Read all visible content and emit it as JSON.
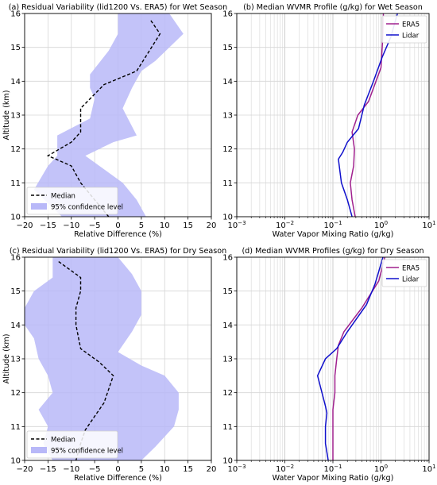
{
  "chart_data": [
    {
      "id": "a",
      "type": "line",
      "title": "(a) Residual Variability (lid1200 Vs. ERA5) for Wet Season",
      "xlabel": "Relative Difference (%)",
      "ylabel": "Altitude (km)",
      "xscale": "linear",
      "xlim": [
        -20,
        20
      ],
      "ylim": [
        10,
        16
      ],
      "xticks": [
        -20,
        -15,
        -10,
        -5,
        0,
        5,
        10,
        15,
        20
      ],
      "xtick_labels": [
        "−20",
        "−15",
        "−10",
        "−5",
        "0",
        "5",
        "10",
        "15",
        "20"
      ],
      "yticks": [
        10,
        11,
        12,
        13,
        14,
        15,
        16
      ],
      "ytick_labels": [
        "10",
        "11",
        "12",
        "13",
        "14",
        "15",
        "16"
      ],
      "grid": true,
      "legend": "lower-left",
      "legend_entries": [
        {
          "label": "Median",
          "style": "dashed",
          "color": "#000000"
        },
        {
          "label": "95% confidence level",
          "style": "patch",
          "color": "#b8b8f8"
        }
      ],
      "median": {
        "x": [
          -2,
          -5,
          -8,
          -10,
          -15,
          -10,
          -8,
          -8,
          -3,
          4,
          9,
          7
        ],
        "y": [
          10,
          10.5,
          11,
          11.5,
          11.8,
          12.2,
          12.5,
          13.2,
          13.9,
          14.3,
          15.4,
          15.8
        ]
      },
      "band_lower": {
        "x": [
          -12,
          -18,
          -15,
          -13,
          -13,
          -6,
          -5,
          -6,
          -6,
          -2,
          0,
          0
        ],
        "y": [
          10,
          10.8,
          11.5,
          11.8,
          12.4,
          12.9,
          13.5,
          13.8,
          14.2,
          14.9,
          15.4,
          16
        ]
      },
      "band_upper": {
        "x": [
          6,
          4,
          1,
          -7,
          -1,
          4,
          1,
          3,
          5,
          8,
          14,
          11
        ],
        "y": [
          10,
          10.5,
          11,
          11.8,
          12.2,
          12.4,
          13.2,
          13.8,
          14.3,
          14.6,
          15.4,
          16
        ]
      }
    },
    {
      "id": "b",
      "type": "line",
      "title": "(b) Median WVMR Profile (g/kg) for Wet Season",
      "xlabel": "Water Vapor Mixing Ratio (g/kg)",
      "ylabel": "",
      "xscale": "log",
      "xlim": [
        0.001,
        10
      ],
      "ylim": [
        10,
        16
      ],
      "xticks": [
        0.001,
        0.01,
        0.1,
        1,
        10
      ],
      "xtick_labels": [
        [
          "10",
          "−3"
        ],
        [
          "10",
          "−2"
        ],
        [
          "10",
          "−1"
        ],
        [
          "10",
          "0"
        ],
        [
          "10",
          "1"
        ]
      ],
      "yticks": [
        10,
        11,
        12,
        13,
        14,
        15,
        16
      ],
      "ytick_labels": [
        "10",
        "11",
        "12",
        "13",
        "14",
        "15",
        "16"
      ],
      "grid": true,
      "legend": "top-right",
      "series": [
        {
          "name": "ERA5",
          "color": "#a0208e",
          "x": [
            0.29,
            0.25,
            0.23,
            0.27,
            0.28,
            0.25,
            0.33,
            0.55,
            1.0,
            1.1,
            1.12
          ],
          "y": [
            10,
            10.5,
            11,
            11.5,
            12,
            12.5,
            13,
            13.4,
            14.4,
            15.4,
            16
          ]
        },
        {
          "name": "Lidar",
          "color": "#1010cc",
          "x": [
            0.25,
            0.2,
            0.15,
            0.13,
            0.16,
            0.2,
            0.34,
            0.45,
            0.7,
            1.05,
            1.6,
            2.2
          ],
          "y": [
            10,
            10.5,
            11,
            11.7,
            11.9,
            12.2,
            12.6,
            13.3,
            14,
            14.7,
            15.3,
            16
          ]
        }
      ]
    },
    {
      "id": "c",
      "type": "line",
      "title": "(c) Residual Variability (lid1200 Vs. ERA5) for Dry Season",
      "xlabel": "Relative Difference (%)",
      "ylabel": "Altitude (km)",
      "xscale": "linear",
      "xlim": [
        -20,
        20
      ],
      "ylim": [
        10,
        16
      ],
      "xticks": [
        -20,
        -15,
        -10,
        -5,
        0,
        5,
        10,
        15,
        20
      ],
      "xtick_labels": [
        "−20",
        "−15",
        "−10",
        "−5",
        "0",
        "5",
        "10",
        "15",
        "20"
      ],
      "yticks": [
        10,
        11,
        12,
        13,
        14,
        15,
        16
      ],
      "ytick_labels": [
        "10",
        "11",
        "12",
        "13",
        "14",
        "15",
        "16"
      ],
      "grid": true,
      "legend": "lower-left",
      "legend_entries": [
        {
          "label": "Median",
          "style": "dashed",
          "color": "#000000"
        },
        {
          "label": "95% confidence level",
          "style": "patch",
          "color": "#b8b8f8"
        }
      ],
      "median": {
        "x": [
          -9,
          -8,
          -7,
          -5,
          -3,
          -1,
          -4,
          -8,
          -9,
          -9,
          -8,
          -8,
          -13
        ],
        "y": [
          10,
          10.5,
          10.9,
          11.3,
          11.7,
          12.5,
          12.9,
          13.3,
          14.0,
          14.5,
          15.0,
          15.4,
          15.9
        ]
      },
      "band_lower": {
        "x": [
          -14,
          -16,
          -15,
          -17,
          -14,
          -15,
          -17,
          -18,
          -20,
          -20,
          -18,
          -14,
          -14
        ],
        "y": [
          10,
          10.5,
          11,
          11.5,
          12,
          12.5,
          13,
          13.6,
          14,
          14.5,
          15,
          15.4,
          16
        ]
      },
      "band_upper": {
        "x": [
          5,
          8,
          12,
          13,
          13,
          10,
          5,
          0,
          3,
          5,
          5,
          3,
          0
        ],
        "y": [
          10,
          10.4,
          11.0,
          11.5,
          12.0,
          12.5,
          12.8,
          13.2,
          13.8,
          14.3,
          15.0,
          15.5,
          16
        ]
      }
    },
    {
      "id": "d",
      "type": "line",
      "title": "(d) Median WVMR Profiles (g/kg) for Dry Season",
      "xlabel": "Water Vapor Mixing Ratio (g/kg)",
      "ylabel": "",
      "xscale": "log",
      "xlim": [
        0.001,
        10
      ],
      "ylim": [
        10,
        16
      ],
      "xticks": [
        0.001,
        0.01,
        0.1,
        1,
        10
      ],
      "xtick_labels": [
        [
          "10",
          "−3"
        ],
        [
          "10",
          "−2"
        ],
        [
          "10",
          "−1"
        ],
        [
          "10",
          "0"
        ],
        [
          "10",
          "1"
        ]
      ],
      "yticks": [
        10,
        11,
        12,
        13,
        14,
        15,
        16
      ],
      "ytick_labels": [
        "10",
        "11",
        "12",
        "13",
        "14",
        "15",
        "16"
      ],
      "grid": true,
      "legend": "top-right",
      "series": [
        {
          "name": "ERA5",
          "color": "#a0208e",
          "x": [
            0.1,
            0.1,
            0.1,
            0.11,
            0.11,
            0.12,
            0.13,
            0.17,
            0.4,
            0.9,
            1.2
          ],
          "y": [
            10,
            10.8,
            11.5,
            12,
            12.5,
            13,
            13.4,
            13.8,
            14.5,
            15.3,
            16
          ]
        },
        {
          "name": "Lidar",
          "color": "#1010cc",
          "x": [
            0.08,
            0.07,
            0.07,
            0.075,
            0.07,
            0.048,
            0.07,
            0.12,
            0.2,
            0.5,
            0.75,
            1.1
          ],
          "y": [
            10,
            10.5,
            11,
            11.4,
            11.6,
            12.5,
            13,
            13.3,
            13.8,
            14.6,
            15.2,
            16
          ]
        }
      ]
    }
  ]
}
